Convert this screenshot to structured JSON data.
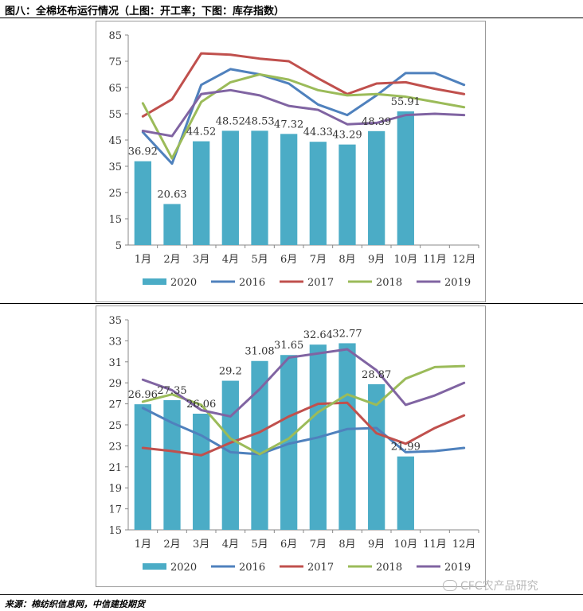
{
  "header": {
    "title": "图八：全棉坯布运行情况（上图：开工率；下图：库存指数）"
  },
  "footer": {
    "source": "来源：棉纺织信息网，中信建投期货"
  },
  "watermark": {
    "text": "CFC农产品研究"
  },
  "chart_data": [
    {
      "type": "bar+line",
      "categories": [
        "1月",
        "2月",
        "3月",
        "4月",
        "5月",
        "6月",
        "7月",
        "8月",
        "9月",
        "10月",
        "11月",
        "12月"
      ],
      "ylim": [
        5,
        85
      ],
      "yticks": [
        5,
        15,
        25,
        35,
        45,
        55,
        65,
        75,
        85
      ],
      "bar_series": {
        "name": "2020",
        "values": [
          36.92,
          20.63,
          44.52,
          48.52,
          48.53,
          47.32,
          44.33,
          43.29,
          48.39,
          55.91
        ],
        "labels": [
          "36.92",
          "20.63",
          "44.52",
          "48.52",
          "48.53",
          "47.32",
          "44.33",
          "43.29",
          "48.39",
          "55.91"
        ]
      },
      "line_series": [
        {
          "name": "2016",
          "values": [
            48,
            36,
            66,
            72,
            70,
            66.5,
            58.5,
            54.5,
            62,
            70.5,
            70.5,
            66
          ]
        },
        {
          "name": "2017",
          "values": [
            54,
            60.5,
            78,
            77.5,
            76,
            75,
            68.5,
            62.5,
            66.5,
            67,
            64.5,
            62.5
          ]
        },
        {
          "name": "2018",
          "values": [
            59,
            38,
            59.5,
            67,
            70,
            68,
            64,
            62,
            62.5,
            61.5,
            59.5,
            57.5
          ]
        },
        {
          "name": "2019",
          "values": [
            48.5,
            46.5,
            62.5,
            64,
            62,
            58,
            56.5,
            51,
            51.5,
            54.5,
            55,
            54.5
          ]
        }
      ],
      "legend": [
        "2020",
        "2016",
        "2017",
        "2018",
        "2019"
      ],
      "legend_position": "bottom"
    },
    {
      "type": "bar+line",
      "categories": [
        "1月",
        "2月",
        "3月",
        "4月",
        "5月",
        "6月",
        "7月",
        "8月",
        "9月",
        "10月",
        "11月",
        "12月"
      ],
      "ylim": [
        15,
        35
      ],
      "yticks": [
        15,
        17,
        19,
        21,
        23,
        25,
        27,
        29,
        31,
        33,
        35
      ],
      "bar_series": {
        "name": "2020",
        "values": [
          26.96,
          27.35,
          26.06,
          29.2,
          31.08,
          31.65,
          32.64,
          32.77,
          28.87,
          21.99
        ],
        "labels": [
          "26.96",
          "27.35",
          "26.06",
          "29.2",
          "31.08",
          "31.65",
          "32.64",
          "32.77",
          "28.87",
          "21.99"
        ]
      },
      "line_series": [
        {
          "name": "2016",
          "values": [
            26.6,
            25.2,
            24,
            22.4,
            22.2,
            23.2,
            23.8,
            24.6,
            24.7,
            22.4,
            22.5,
            22.8
          ]
        },
        {
          "name": "2017",
          "values": [
            22.8,
            22.5,
            22.1,
            23.3,
            24.3,
            25.8,
            27,
            27.1,
            24.2,
            23.2,
            24.7,
            25.9
          ]
        },
        {
          "name": "2018",
          "values": [
            27.2,
            27.9,
            26.9,
            23.7,
            22.2,
            23.7,
            26.2,
            27.9,
            26.9,
            29.4,
            30.5,
            30.6
          ]
        },
        {
          "name": "2019",
          "values": [
            29.3,
            28.3,
            26.4,
            25.8,
            28.4,
            31.4,
            31.8,
            32.2,
            30.2,
            26.9,
            27.8,
            29
          ]
        }
      ],
      "legend": [
        "2020",
        "2016",
        "2017",
        "2018",
        "2019"
      ],
      "legend_position": "bottom"
    }
  ],
  "colors": {
    "2020": "#4bacc6",
    "2016": "#4f81bd",
    "2017": "#c0504d",
    "2018": "#9bbb59",
    "2019": "#8064a2"
  }
}
